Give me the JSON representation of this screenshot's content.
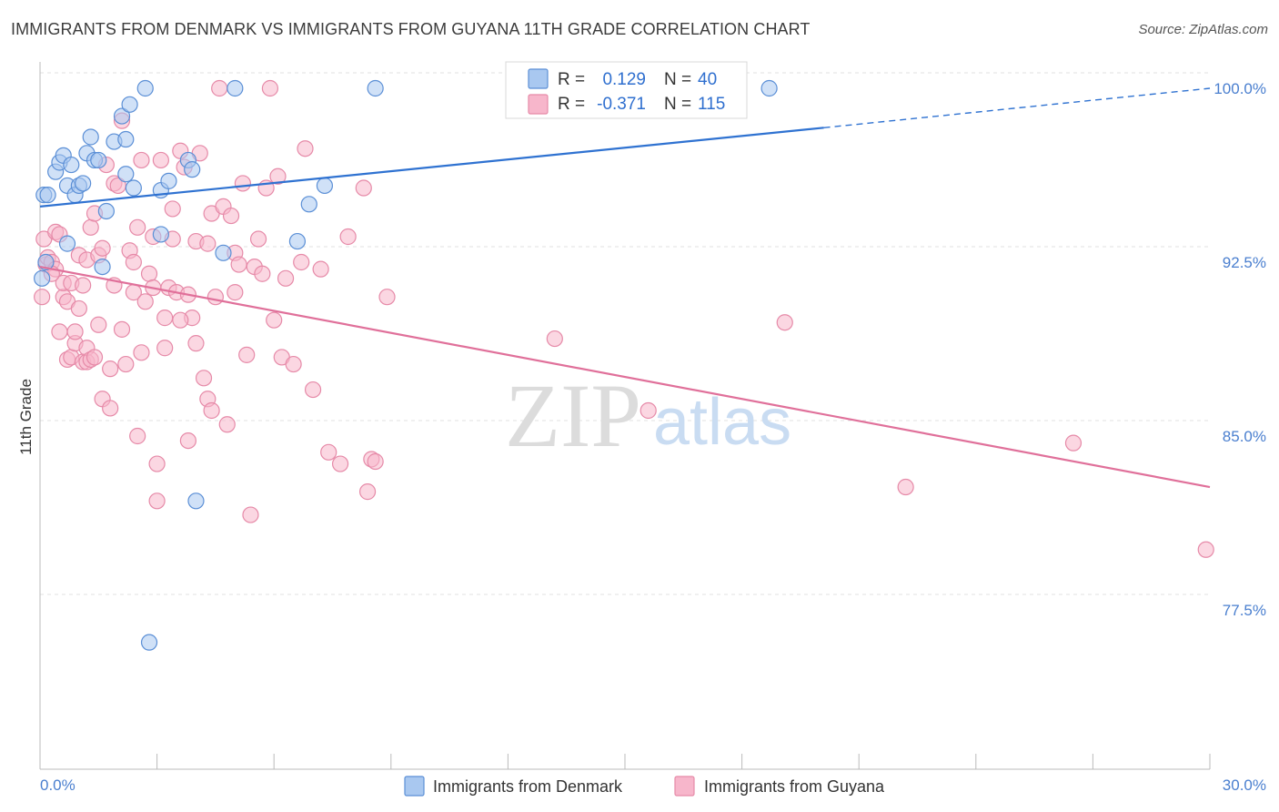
{
  "header": {
    "title": "IMMIGRANTS FROM DENMARK VS IMMIGRANTS FROM GUYANA 11TH GRADE CORRELATION CHART",
    "source": "Source: ZipAtlas.com"
  },
  "colors": {
    "denmark_fill": "#a9c8f0",
    "denmark_stroke": "#5b8fd6",
    "denmark_line": "#2f72d1",
    "guyana_fill": "#f7b6cb",
    "guyana_stroke": "#e68aa8",
    "guyana_line": "#e0709a",
    "value_text": "#2f6fcf",
    "grid": "#e0e0e0"
  },
  "legend": {
    "r_label": "R =",
    "n_label": "N =",
    "denmark": {
      "r": "0.129",
      "n": "40"
    },
    "guyana": {
      "r": "-0.371",
      "n": "115"
    }
  },
  "watermark": {
    "zip": "ZIP",
    "atlas": "atlas"
  },
  "chart_data": {
    "type": "scatter",
    "title": "IMMIGRANTS FROM DENMARK VS IMMIGRANTS FROM GUYANA 11TH GRADE CORRELATION CHART",
    "xlabel": "",
    "ylabel": "11th Grade",
    "xlim": [
      0,
      30
    ],
    "ylim": [
      71.0,
      101.5
    ],
    "x_tick_labels": [
      "0.0%",
      "30.0%"
    ],
    "y_ticks": [
      77.5,
      85.0,
      92.5,
      100.0
    ],
    "y_tick_labels": [
      "77.5%",
      "85.0%",
      "92.5%",
      "100.0%"
    ],
    "legend_position": "top-center",
    "series": [
      {
        "name": "Immigrants from Denmark",
        "r": 0.129,
        "n": 40,
        "trend": {
          "x0": 0,
          "y0": 94.9,
          "x1": 20.1,
          "y1": 98.3,
          "dashed_to_x": 30,
          "dashed_to_y": 100.0
        },
        "points": [
          [
            0.1,
            95.4
          ],
          [
            0.2,
            95.4
          ],
          [
            0.4,
            96.4
          ],
          [
            0.5,
            96.8
          ],
          [
            0.6,
            97.1
          ],
          [
            0.7,
            93.3
          ],
          [
            0.7,
            95.8
          ],
          [
            0.8,
            96.7
          ],
          [
            0.9,
            95.4
          ],
          [
            1.0,
            95.8
          ],
          [
            1.1,
            95.9
          ],
          [
            1.2,
            97.2
          ],
          [
            1.3,
            97.9
          ],
          [
            1.4,
            96.9
          ],
          [
            1.5,
            96.9
          ],
          [
            1.6,
            92.3
          ],
          [
            1.7,
            94.7
          ],
          [
            1.9,
            97.7
          ],
          [
            2.1,
            98.8
          ],
          [
            2.2,
            96.3
          ],
          [
            2.2,
            97.8
          ],
          [
            2.3,
            99.3
          ],
          [
            2.4,
            95.7
          ],
          [
            2.7,
            100.0
          ],
          [
            2.8,
            76.1
          ],
          [
            3.1,
            93.7
          ],
          [
            3.1,
            95.6
          ],
          [
            3.3,
            96.0
          ],
          [
            3.8,
            96.9
          ],
          [
            3.9,
            96.5
          ],
          [
            4.0,
            82.2
          ],
          [
            4.7,
            92.9
          ],
          [
            5.0,
            100.0
          ],
          [
            6.6,
            93.4
          ],
          [
            6.9,
            95.0
          ],
          [
            7.3,
            95.8
          ],
          [
            8.6,
            100.0
          ],
          [
            18.7,
            100.0
          ],
          [
            0.05,
            91.8
          ],
          [
            0.15,
            92.5
          ]
        ]
      },
      {
        "name": "Immigrants from Guyana",
        "r": -0.371,
        "n": 115,
        "trend": {
          "x0": 0,
          "y0": 92.3,
          "x1": 30,
          "y1": 82.8
        },
        "points": [
          [
            0.05,
            91.0
          ],
          [
            0.1,
            93.5
          ],
          [
            0.15,
            92.4
          ],
          [
            0.2,
            92.7
          ],
          [
            0.3,
            92.5
          ],
          [
            0.4,
            92.2
          ],
          [
            0.4,
            93.8
          ],
          [
            0.5,
            93.7
          ],
          [
            0.6,
            91.0
          ],
          [
            0.6,
            91.6
          ],
          [
            0.7,
            90.8
          ],
          [
            0.7,
            88.3
          ],
          [
            0.8,
            91.6
          ],
          [
            0.8,
            88.4
          ],
          [
            0.9,
            89.0
          ],
          [
            0.9,
            89.5
          ],
          [
            1.0,
            92.8
          ],
          [
            1.1,
            91.5
          ],
          [
            1.1,
            88.2
          ],
          [
            1.2,
            88.2
          ],
          [
            1.2,
            88.8
          ],
          [
            1.2,
            92.6
          ],
          [
            1.3,
            88.3
          ],
          [
            1.3,
            94.0
          ],
          [
            1.4,
            88.4
          ],
          [
            1.4,
            94.6
          ],
          [
            1.5,
            92.8
          ],
          [
            1.5,
            89.8
          ],
          [
            1.6,
            86.6
          ],
          [
            1.6,
            93.1
          ],
          [
            1.7,
            96.7
          ],
          [
            1.8,
            87.9
          ],
          [
            1.8,
            86.2
          ],
          [
            1.9,
            95.9
          ],
          [
            1.9,
            91.5
          ],
          [
            2.0,
            95.8
          ],
          [
            2.1,
            89.6
          ],
          [
            2.1,
            98.6
          ],
          [
            2.2,
            88.1
          ],
          [
            2.3,
            93.0
          ],
          [
            2.4,
            91.2
          ],
          [
            2.4,
            92.5
          ],
          [
            2.5,
            94.0
          ],
          [
            2.6,
            96.9
          ],
          [
            2.6,
            88.6
          ],
          [
            2.7,
            90.8
          ],
          [
            2.8,
            92.0
          ],
          [
            2.9,
            91.4
          ],
          [
            2.9,
            93.6
          ],
          [
            3.0,
            83.8
          ],
          [
            3.0,
            82.2
          ],
          [
            3.1,
            96.9
          ],
          [
            3.2,
            90.1
          ],
          [
            3.2,
            88.8
          ],
          [
            3.3,
            91.4
          ],
          [
            3.4,
            93.5
          ],
          [
            3.4,
            94.8
          ],
          [
            3.5,
            91.2
          ],
          [
            3.6,
            97.3
          ],
          [
            3.7,
            96.6
          ],
          [
            3.8,
            84.8
          ],
          [
            3.8,
            91.1
          ],
          [
            3.9,
            90.1
          ],
          [
            4.0,
            89.0
          ],
          [
            4.0,
            93.4
          ],
          [
            4.1,
            97.2
          ],
          [
            4.2,
            87.5
          ],
          [
            4.3,
            93.3
          ],
          [
            4.3,
            86.6
          ],
          [
            4.4,
            86.1
          ],
          [
            4.4,
            94.6
          ],
          [
            4.5,
            91.0
          ],
          [
            4.6,
            100.0
          ],
          [
            4.7,
            94.9
          ],
          [
            4.8,
            85.5
          ],
          [
            4.9,
            94.5
          ],
          [
            5.0,
            92.9
          ],
          [
            5.0,
            91.2
          ],
          [
            5.1,
            92.4
          ],
          [
            5.2,
            95.9
          ],
          [
            5.4,
            81.6
          ],
          [
            5.5,
            92.3
          ],
          [
            5.6,
            93.5
          ],
          [
            5.7,
            92.0
          ],
          [
            5.8,
            95.7
          ],
          [
            5.9,
            100.0
          ],
          [
            6.0,
            90.0
          ],
          [
            6.2,
            88.4
          ],
          [
            6.3,
            91.8
          ],
          [
            6.5,
            88.1
          ],
          [
            6.7,
            92.5
          ],
          [
            6.8,
            97.4
          ],
          [
            7.2,
            92.2
          ],
          [
            7.4,
            84.3
          ],
          [
            7.7,
            83.8
          ],
          [
            7.9,
            93.6
          ],
          [
            8.3,
            95.7
          ],
          [
            8.4,
            82.6
          ],
          [
            8.5,
            84.0
          ],
          [
            8.6,
            83.9
          ],
          [
            8.9,
            91.0
          ],
          [
            13.2,
            89.2
          ],
          [
            15.6,
            86.1
          ],
          [
            19.1,
            89.9
          ],
          [
            22.2,
            82.8
          ],
          [
            26.5,
            84.7
          ],
          [
            29.9,
            80.1
          ],
          [
            0.3,
            92.0
          ],
          [
            0.5,
            89.5
          ],
          [
            1.0,
            90.5
          ],
          [
            2.5,
            85.0
          ],
          [
            3.6,
            90.0
          ],
          [
            5.3,
            88.5
          ],
          [
            6.1,
            96.2
          ],
          [
            7.0,
            87.0
          ]
        ]
      }
    ]
  }
}
